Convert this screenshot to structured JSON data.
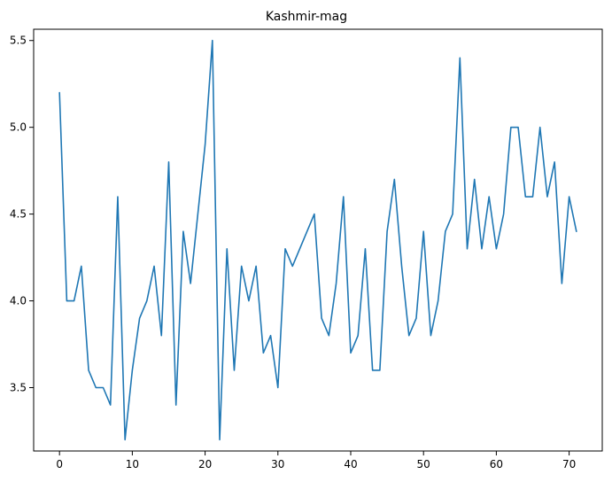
{
  "chart_data": {
    "type": "line",
    "title": "Kashmir-mag",
    "xlabel": "",
    "ylabel": "",
    "xlim": [
      -3.55,
      74.55
    ],
    "ylim": [
      3.135,
      5.565
    ],
    "grid": false,
    "xticks": [
      0,
      10,
      20,
      30,
      40,
      50,
      60,
      70
    ],
    "xtick_labels": [
      "0",
      "10",
      "20",
      "30",
      "40",
      "50",
      "60",
      "70"
    ],
    "yticks": [
      3.5,
      4.0,
      4.5,
      5.0,
      5.5
    ],
    "ytick_labels": [
      "3.5",
      "4.0",
      "4.5",
      "5.0",
      "5.5"
    ],
    "series": [
      {
        "color": "#1f77b4",
        "x": [
          0,
          1,
          2,
          3,
          4,
          5,
          6,
          7,
          8,
          9,
          10,
          11,
          12,
          13,
          14,
          15,
          16,
          17,
          18,
          19,
          20,
          21,
          22,
          23,
          24,
          25,
          26,
          27,
          28,
          29,
          30,
          31,
          32,
          33,
          34,
          35,
          36,
          37,
          38,
          39,
          40,
          41,
          42,
          43,
          44,
          45,
          46,
          47,
          48,
          49,
          50,
          51,
          52,
          53,
          54,
          55,
          56,
          57,
          58,
          59,
          60,
          61,
          62,
          63,
          64,
          65,
          66,
          67,
          68,
          69,
          70,
          71
        ],
        "y": [
          5.2,
          4.0,
          4.0,
          4.2,
          3.6,
          3.5,
          3.5,
          3.4,
          4.6,
          3.2,
          3.6,
          3.9,
          4.0,
          4.2,
          3.8,
          4.8,
          3.4,
          4.4,
          4.1,
          4.5,
          4.9,
          5.5,
          3.2,
          4.3,
          3.6,
          4.2,
          4.0,
          4.2,
          3.7,
          3.8,
          3.5,
          4.3,
          4.2,
          4.3,
          4.4,
          4.5,
          3.9,
          3.8,
          4.1,
          4.6,
          3.7,
          3.8,
          4.3,
          3.6,
          3.6,
          4.4,
          4.7,
          4.2,
          3.8,
          3.9,
          4.4,
          3.8,
          4.0,
          4.4,
          4.5,
          5.4,
          4.3,
          4.7,
          4.3,
          4.6,
          4.3,
          4.5,
          5.0,
          5.0,
          4.6,
          4.6,
          5.0,
          4.6,
          4.8,
          4.1,
          4.6,
          4.4
        ]
      }
    ]
  }
}
